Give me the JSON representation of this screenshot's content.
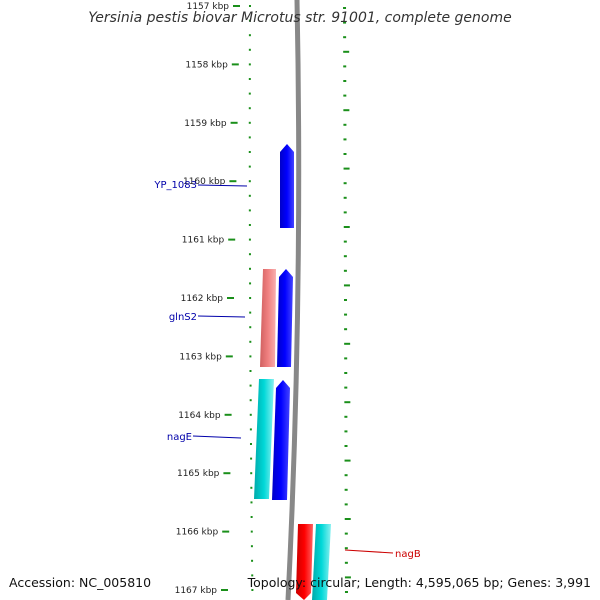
{
  "title": "Yersinia pestis biovar Microtus str. 91001, complete genome",
  "footer": {
    "accession": "Accession: NC_005810",
    "topology": "Topology: circular; Length: 4,595,065 bp; Genes: 3,991"
  },
  "colors": {
    "background": "#ffffff",
    "tick_marks": "#1a8f1a",
    "backbone": "#888888",
    "label_blue": "#0000aa",
    "label_red": "#cc0000",
    "gene_blue": "#0000ee",
    "gene_teal": "#00c8c8",
    "gene_pink": "#f08080",
    "gene_red": "#ff0000"
  },
  "ruler": [
    "1157 kbp",
    "1158 kbp",
    "1159 kbp",
    "1160 kbp",
    "1161 kbp",
    "1162 kbp",
    "1163 kbp",
    "1164 kbp",
    "1165 kbp",
    "1166 kbp",
    "1167 kbp"
  ],
  "labels": [
    {
      "text": "YP_1083",
      "color": "label_blue"
    },
    {
      "text": "glnS2",
      "color": "label_blue"
    },
    {
      "text": "nagE",
      "color": "label_blue"
    },
    {
      "text": "nagB",
      "color": "label_red"
    }
  ],
  "features": [
    {
      "name": "YP_1083",
      "color": "gene_blue",
      "strand": "forward"
    },
    {
      "name": "glnS2-a",
      "color": "gene_pink",
      "strand": "none"
    },
    {
      "name": "glnS2",
      "color": "gene_blue",
      "strand": "forward"
    },
    {
      "name": "nagE-a",
      "color": "gene_teal",
      "strand": "none"
    },
    {
      "name": "nagE",
      "color": "gene_blue",
      "strand": "forward"
    },
    {
      "name": "nagB",
      "color": "gene_red",
      "strand": "reverse"
    },
    {
      "name": "nagB-b",
      "color": "gene_teal",
      "strand": "none"
    }
  ]
}
